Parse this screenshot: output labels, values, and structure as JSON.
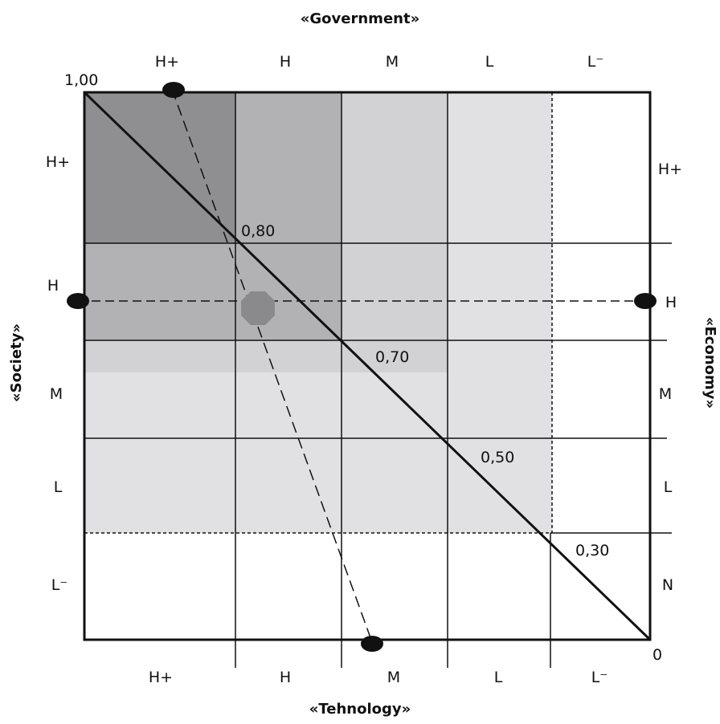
{
  "diagram": {
    "axes": {
      "top": "«Government»",
      "bottom": "«Tehnology»",
      "left": "«Society»",
      "right": "«Economy»"
    },
    "top_levels": [
      "H+",
      "H",
      "M",
      "L",
      "L⁻"
    ],
    "bottom_levels": [
      "H+",
      "H",
      "M",
      "L",
      "L⁻"
    ],
    "left_levels": [
      "H+",
      "H",
      "M",
      "L",
      "L⁻"
    ],
    "right_levels": [
      "H+",
      "H",
      "M",
      "L",
      "N"
    ],
    "diagonal_values": [
      "1,00",
      "0,80",
      "0,70",
      "0,50",
      "0,30",
      "0"
    ],
    "colors": {
      "zone_darkest": "#8f8f91",
      "zone_dark": "#b2b2b4",
      "zone_mid": "#d2d2d4",
      "zone_light": "#e1e1e3",
      "marker": "#111111",
      "intersection_marker": "#8a8a8c"
    }
  }
}
